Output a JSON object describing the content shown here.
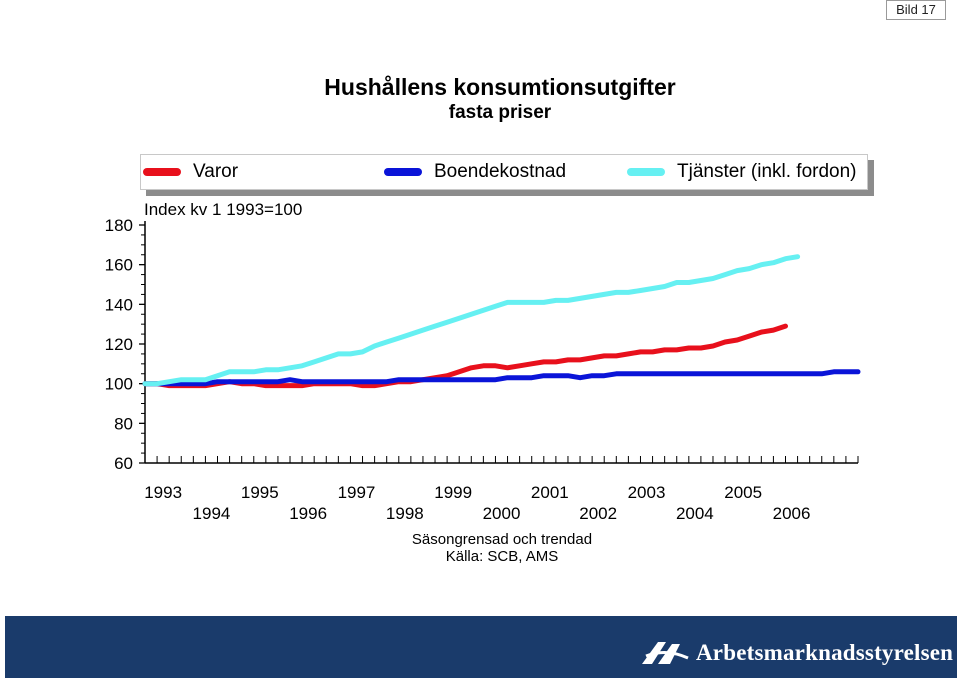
{
  "slide": {
    "label": "Bild 17"
  },
  "header": {
    "title": "Hushållens konsumtionsutgifter",
    "subtitle": "fasta priser"
  },
  "notes": {
    "seasonal": "Säsongrensad och trendad",
    "source": "Källa: SCB, AMS"
  },
  "footer": {
    "org_name": "Arbetsmarknadsstyrelsen",
    "band_color": "#1a3b6b"
  },
  "chart_data": {
    "type": "line",
    "index_label": "Index kv 1 1993=100",
    "ylim": [
      60,
      180
    ],
    "yticks": [
      60,
      80,
      100,
      120,
      140,
      160,
      180
    ],
    "ytick_labels": [
      "60",
      "80",
      "100",
      "120",
      "140",
      "160",
      "180"
    ],
    "x_quarters_per_year": 4,
    "x_start": 1993,
    "year_labels_top": [
      "1993",
      "1995",
      "1997",
      "1999",
      "2001",
      "2003",
      "2005"
    ],
    "year_labels_bottom": [
      "1994",
      "1996",
      "1998",
      "2000",
      "2002",
      "2004",
      "2006"
    ],
    "legend_position": "top",
    "series": [
      {
        "name": "Varor",
        "color": "#e8101c",
        "values": [
          100,
          100,
          99,
          99,
          99,
          99,
          100,
          101,
          100,
          100,
          99,
          99,
          99,
          99,
          100,
          100,
          100,
          100,
          99,
          99,
          100,
          101,
          101,
          102,
          103,
          104,
          106,
          108,
          109,
          109,
          108,
          109,
          110,
          111,
          111,
          112,
          112,
          113,
          114,
          114,
          115,
          116,
          116,
          117,
          117,
          118,
          118,
          119,
          121,
          122,
          124,
          126,
          127,
          129
        ]
      },
      {
        "name": "Boendekostnad",
        "color": "#0a14d8",
        "values": [
          100,
          100,
          100,
          100,
          100,
          100,
          101,
          101,
          101,
          101,
          101,
          101,
          102,
          101,
          101,
          101,
          101,
          101,
          101,
          101,
          101,
          102,
          102,
          102,
          102,
          102,
          102,
          102,
          102,
          102,
          103,
          103,
          103,
          104,
          104,
          104,
          103,
          104,
          104,
          105,
          105,
          105,
          105,
          105,
          105,
          105,
          105,
          105,
          105,
          105,
          105,
          105,
          105,
          105,
          105,
          105,
          105,
          106,
          106,
          106
        ]
      },
      {
        "name": "Tjänster (inkl. fordon)",
        "color": "#66f0f2",
        "values": [
          100,
          100,
          101,
          102,
          102,
          102,
          104,
          106,
          106,
          106,
          107,
          107,
          108,
          109,
          111,
          113,
          115,
          115,
          116,
          119,
          121,
          123,
          125,
          127,
          129,
          131,
          133,
          135,
          137,
          139,
          141,
          141,
          141,
          141,
          142,
          142,
          143,
          144,
          145,
          146,
          146,
          147,
          148,
          149,
          151,
          151,
          152,
          153,
          155,
          157,
          158,
          160,
          161,
          163,
          164
        ]
      }
    ]
  }
}
